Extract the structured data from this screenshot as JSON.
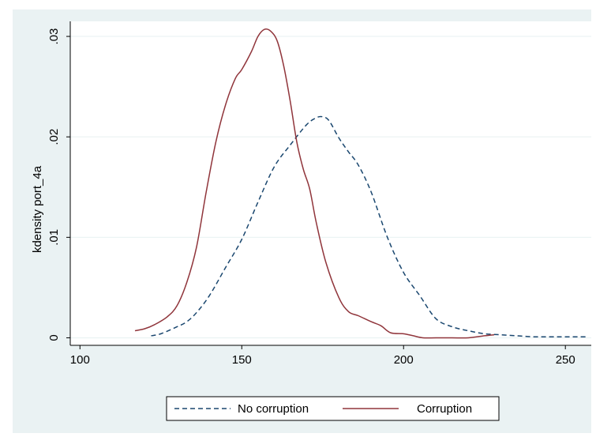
{
  "chart_data": {
    "type": "line",
    "title": "",
    "xlabel": "",
    "ylabel": "kdensity port_4a",
    "xlim": [
      97,
      258
    ],
    "ylim": [
      -0.00075,
      0.0315
    ],
    "x_ticks": [
      100,
      150,
      200,
      250
    ],
    "x_tick_labels": [
      "100",
      "150",
      "200",
      "250"
    ],
    "y_ticks": [
      0,
      0.01,
      0.02,
      0.03
    ],
    "y_tick_labels": [
      "0",
      ".01",
      ".02",
      ".03"
    ],
    "grid": "horizontal",
    "legend_position": "bottom",
    "series": [
      {
        "name": "No corruption",
        "color": "#1a476f",
        "dash": "dashed",
        "x": [
          122,
          125,
          130,
          133,
          136,
          140,
          145,
          150,
          155,
          160,
          165,
          170,
          173,
          175,
          177,
          180,
          183,
          186,
          190,
          195,
          200,
          205,
          210,
          215,
          220,
          225,
          230,
          235,
          240,
          245,
          250,
          257
        ],
        "y": [
          0.0002,
          0.0004,
          0.0011,
          0.0016,
          0.0025,
          0.0042,
          0.007,
          0.0098,
          0.0135,
          0.017,
          0.0192,
          0.0212,
          0.0219,
          0.022,
          0.0216,
          0.0199,
          0.0185,
          0.0172,
          0.0145,
          0.01,
          0.0065,
          0.0042,
          0.0019,
          0.0011,
          0.0007,
          0.0004,
          0.0003,
          0.0002,
          0.0001,
          0.0001,
          0.0001,
          0.0001
        ]
      },
      {
        "name": "Corruption",
        "color": "#90353b",
        "dash": "solid",
        "x": [
          117,
          120,
          123,
          127,
          130,
          133,
          136,
          139,
          142,
          145,
          148,
          150,
          153,
          155,
          157,
          159,
          161,
          163,
          165,
          167,
          169,
          171,
          173,
          176,
          180,
          183,
          186,
          190,
          193,
          196,
          200,
          203,
          206,
          210,
          215,
          220,
          225,
          228
        ],
        "y": [
          0.0007,
          0.0009,
          0.0013,
          0.0021,
          0.0032,
          0.0055,
          0.009,
          0.0145,
          0.0195,
          0.0232,
          0.0258,
          0.0267,
          0.0285,
          0.03,
          0.0307,
          0.0305,
          0.0295,
          0.027,
          0.0235,
          0.0195,
          0.0168,
          0.0148,
          0.0115,
          0.0075,
          0.004,
          0.0026,
          0.0022,
          0.0016,
          0.0012,
          0.0005,
          0.0004,
          0.0002,
          0.0,
          0.0,
          0.0,
          0.0,
          0.0002,
          0.0003
        ]
      }
    ]
  }
}
